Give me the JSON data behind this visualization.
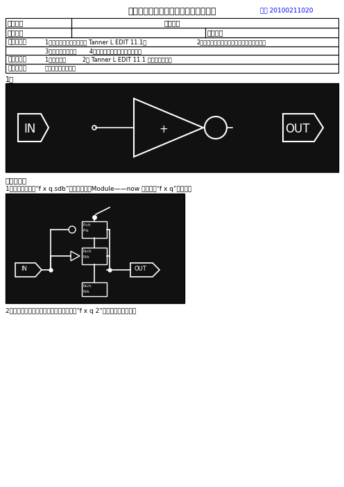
{
  "title": "广西机电职业技术学院电气系实验报告",
  "student_id": "学号 20100211020",
  "row1_label": "实验名称",
  "row1_value": "面反相器",
  "row2_label": "上机时间",
  "row2_label2": "实验成绩",
  "row3_label": "实验目的：",
  "row3_val1": "1、熟悉使用版图设计软件 Tanner L EDIT 11.1；",
  "row3_val2": "2、了解软件的操作流程和基本参数的设置；",
  "row4_val": "3、学会修改错误；       4、学会看编译文件、电路图等；",
  "row5_label": "实验要求：",
  "row5_val": "1、计算机；         2、 Tanner L EDIT 11.1 版图开发软件；",
  "row6_label": "实验内容：",
  "row6_val": "下面是反相器符号。",
  "sec1_title": "一、电路图",
  "step1_text": "1、新建一个名为“f x q.sdb”的工程文件，Module——now 新建名为“f x q”的电路图",
  "step2_text": "2、保存后复制粘贴到新的电路图里命名为“f x q 2”添加直流源和交流源",
  "label1": "1、",
  "bg_color": "#ffffff",
  "blue_color": "#0000ff",
  "circuit_bg": "#111111",
  "dot_color": "#444444",
  "white": "#ffffff",
  "black": "#000000"
}
